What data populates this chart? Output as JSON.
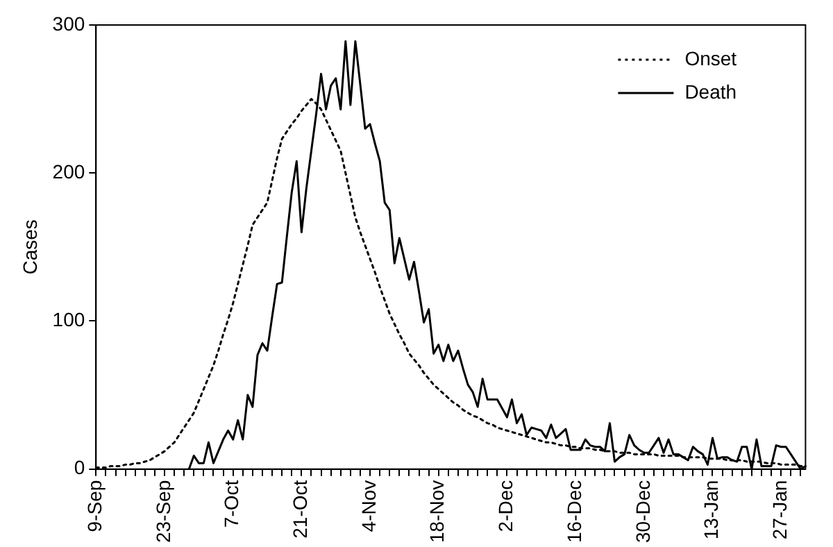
{
  "chart_data": {
    "type": "line",
    "ylabel": "Cases",
    "ylim": [
      0,
      300
    ],
    "yticks": [
      0,
      100,
      200,
      300
    ],
    "categories": [
      "9-Sep",
      null,
      null,
      null,
      null,
      null,
      null,
      null,
      null,
      null,
      null,
      null,
      null,
      null,
      "23-Sep",
      null,
      null,
      null,
      null,
      null,
      null,
      null,
      null,
      null,
      null,
      null,
      null,
      null,
      "7-Oct",
      null,
      null,
      null,
      null,
      null,
      null,
      null,
      null,
      null,
      null,
      null,
      null,
      null,
      "21-Oct",
      null,
      null,
      null,
      null,
      null,
      null,
      null,
      null,
      null,
      null,
      null,
      null,
      null,
      "4-Nov",
      null,
      null,
      null,
      null,
      null,
      null,
      null,
      null,
      null,
      null,
      null,
      null,
      null,
      "18-Nov",
      null,
      null,
      null,
      null,
      null,
      null,
      null,
      null,
      null,
      null,
      null,
      null,
      null,
      "2-Dec",
      null,
      null,
      null,
      null,
      null,
      null,
      null,
      null,
      null,
      null,
      null,
      null,
      null,
      "16-Dec",
      null,
      null,
      null,
      null,
      null,
      null,
      null,
      null,
      null,
      null,
      null,
      null,
      null,
      "30-Dec",
      null,
      null,
      null,
      null,
      null,
      null,
      null,
      null,
      null,
      null,
      null,
      null,
      null,
      "13-Jan",
      null,
      null,
      null,
      null,
      null,
      null,
      null,
      null,
      null,
      null,
      null,
      null,
      null,
      "27-Jan",
      null,
      null,
      null,
      null,
      null
    ],
    "grid": false,
    "legend": "top right",
    "marker": "none",
    "series": [
      {
        "name": "Onset",
        "color": "#000000",
        "line_style": "dotted",
        "values": [
          1,
          1,
          1,
          2,
          2,
          2,
          3,
          3,
          4,
          4,
          5,
          6,
          8,
          10,
          12,
          15,
          18,
          23,
          28,
          33,
          38,
          46,
          54,
          62,
          70,
          80,
          91,
          101,
          112,
          125,
          138,
          151,
          165,
          170,
          175,
          180,
          195,
          210,
          223,
          228,
          233,
          237,
          242,
          246,
          250,
          247,
          243,
          236,
          229,
          222,
          215,
          200,
          185,
          170,
          160,
          151,
          142,
          133,
          123,
          114,
          105,
          98,
          91,
          85,
          78,
          74,
          70,
          65,
          61,
          57,
          54,
          51,
          48,
          45,
          43,
          40,
          38,
          36,
          35,
          33,
          31,
          30,
          28,
          27,
          26,
          25,
          24,
          23,
          22,
          21,
          20,
          19,
          18,
          18,
          17,
          16,
          16,
          15,
          15,
          14,
          14,
          14,
          13,
          13,
          12,
          12,
          12,
          11,
          11,
          11,
          10,
          10,
          10,
          10,
          10,
          9,
          9,
          9,
          9,
          9,
          8,
          8,
          8,
          8,
          8,
          7,
          7,
          7,
          7,
          6,
          6,
          6,
          6,
          5,
          5,
          5,
          5,
          4,
          4,
          4,
          3,
          3,
          3,
          3,
          2,
          2
        ]
      },
      {
        "name": "Death",
        "color": "#000000",
        "line_style": "solid",
        "values": [
          null,
          null,
          null,
          null,
          null,
          null,
          null,
          null,
          null,
          null,
          null,
          null,
          null,
          null,
          null,
          null,
          null,
          null,
          null,
          0,
          9,
          4,
          4,
          18,
          4,
          12,
          20,
          26,
          20,
          33,
          20,
          50,
          42,
          77,
          85,
          80,
          103,
          125,
          126,
          157,
          187,
          208,
          160,
          190,
          215,
          240,
          267,
          243,
          259,
          264,
          243,
          289,
          246,
          289,
          260,
          230,
          233,
          220,
          208,
          180,
          175,
          139,
          156,
          142,
          128,
          140,
          120,
          99,
          108,
          78,
          84,
          73,
          84,
          73,
          80,
          68,
          57,
          52,
          42,
          61,
          47,
          47,
          47,
          41,
          35,
          47,
          31,
          37,
          23,
          28,
          27,
          26,
          21,
          30,
          21,
          24,
          27,
          13,
          13,
          13,
          20,
          16,
          15,
          15,
          12,
          31,
          5,
          8,
          10,
          23,
          16,
          13,
          11,
          11,
          16,
          21,
          11,
          20,
          10,
          10,
          8,
          6,
          15,
          12,
          10,
          3,
          21,
          7,
          8,
          8,
          6,
          5,
          15,
          15,
          0,
          20,
          2,
          2,
          2,
          16,
          15,
          15,
          10,
          5,
          0,
          2
        ]
      }
    ]
  }
}
